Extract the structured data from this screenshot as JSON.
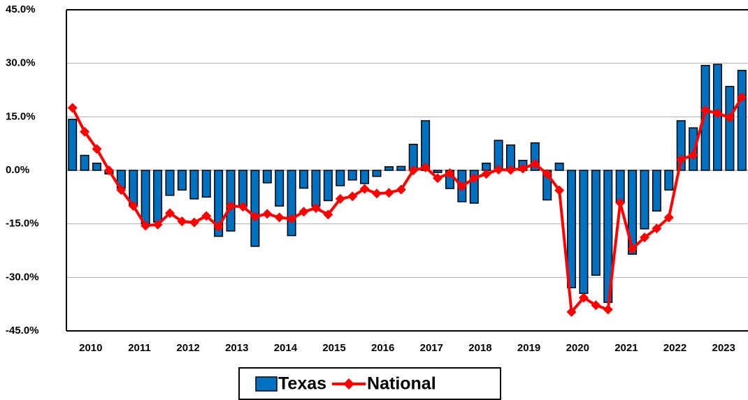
{
  "chart_data": {
    "type": "bar-line",
    "categories": [
      "2010",
      null,
      null,
      null,
      "2011",
      null,
      null,
      null,
      "2012",
      null,
      null,
      null,
      "2013",
      null,
      null,
      null,
      "2014",
      null,
      null,
      null,
      "2015",
      null,
      null,
      null,
      "2016",
      null,
      null,
      null,
      "2017",
      null,
      null,
      null,
      "2018",
      null,
      null,
      null,
      "2019",
      null,
      null,
      null,
      "2020",
      null,
      null,
      null,
      "2021",
      null,
      null,
      null,
      "2022",
      null,
      null,
      null,
      "2023",
      null,
      null,
      null
    ],
    "series": [
      {
        "name": "Texas",
        "type": "bar",
        "color": "#0070c0",
        "values": [
          14.3,
          4.2,
          2.0,
          -1.0,
          -5.0,
          -10.0,
          -15.0,
          -14.5,
          -7.0,
          -5.5,
          -8.0,
          -7.5,
          -18.5,
          -17.0,
          -10.0,
          -21.3,
          -3.5,
          -10.0,
          -18.3,
          -5.0,
          -10.0,
          -8.5,
          -4.3,
          -2.7,
          -3.7,
          -1.7,
          1.0,
          1.1,
          7.3,
          13.9,
          -0.6,
          -5.1,
          -8.8,
          -9.2,
          2.0,
          8.4,
          7.1,
          2.8,
          7.7,
          -8.3,
          2.0,
          -32.9,
          -34.5,
          -29.4,
          -37.0,
          -9.0,
          -23.5,
          -16.4,
          -11.4,
          -5.5,
          13.9,
          11.9,
          29.4,
          29.7,
          23.5,
          28.0
        ]
      },
      {
        "name": "National",
        "type": "line",
        "color": "#ff0000",
        "values": [
          17.5,
          10.8,
          6.0,
          0.0,
          -5.5,
          -10.0,
          -15.5,
          -15.2,
          -12.0,
          -14.3,
          -14.6,
          -12.8,
          -15.8,
          -10.0,
          -10.2,
          -13.0,
          -12.2,
          -13.2,
          -13.6,
          -11.6,
          -10.6,
          -12.4,
          -8.0,
          -7.3,
          -5.2,
          -6.5,
          -6.3,
          -5.4,
          0.0,
          0.8,
          -2.2,
          -0.8,
          -4.5,
          -2.2,
          -1.0,
          0.2,
          0.1,
          0.5,
          1.8,
          -1.0,
          -5.6,
          -39.7,
          -35.7,
          -37.8,
          -39.0,
          -9.1,
          -22.0,
          -18.8,
          -16.3,
          -13.2,
          3.0,
          4.3,
          16.8,
          16.0,
          14.8,
          20.5
        ]
      }
    ],
    "ylim": [
      -45,
      45
    ],
    "yticks": [
      {
        "value": -45,
        "label": "-45.0%"
      },
      {
        "value": -30,
        "label": "-30.0%"
      },
      {
        "value": -15,
        "label": "-15.0%"
      },
      {
        "value": 0,
        "label": "0.0%"
      },
      {
        "value": 15,
        "label": "15.0%"
      },
      {
        "value": 30,
        "label": "30.0%"
      },
      {
        "value": 45,
        "label": "45.0%"
      }
    ],
    "grid": true,
    "legend": "bottom"
  }
}
